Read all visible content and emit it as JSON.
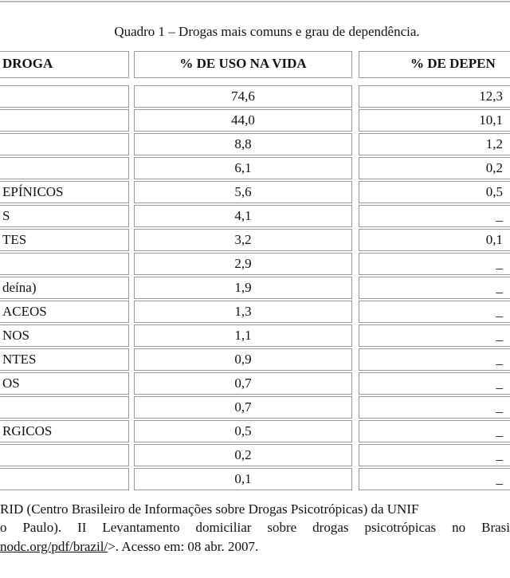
{
  "caption": "Quadro 1 – Drogas mais comuns e grau de dependência.",
  "table": {
    "header": [
      "DROGA",
      "% DE USO NA VIDA",
      "% DE DEPEN"
    ],
    "rows": [
      {
        "use": "74,6",
        "dependence": "12,3"
      },
      {
        "use": "44,0",
        "dependence": "10,1"
      },
      {
        "use": "8,8",
        "dependence": "1,2"
      },
      {
        "use": "6,1",
        "dependence": "0,2"
      },
      {
        "drug": "EPÍNICOS",
        "use": "5,6",
        "dependence": "0,5"
      },
      {
        "drug": "S",
        "use": "4,1",
        "dependence": "_"
      },
      {
        "drug": "TES",
        "use": "3,2",
        "dependence": "0,1"
      },
      {
        "use": "2,9",
        "dependence": "_"
      },
      {
        "drug": "deína)",
        "use": "1,9",
        "dependence": "_"
      },
      {
        "drug": "ACEOS",
        "use": "1,3",
        "dependence": "_"
      },
      {
        "drug": "NOS",
        "use": "1,1",
        "dependence": "_"
      },
      {
        "drug": "NTES",
        "use": "0,9",
        "dependence": "_"
      },
      {
        "drug": "OS",
        "use": "0,7",
        "dependence": "_"
      },
      {
        "use": "0,7",
        "dependence": "_"
      },
      {
        "drug": "RGICOS",
        "use": "0,5",
        "dependence": "_"
      },
      {
        "use": "0,2",
        "dependence": "_"
      },
      {
        "use": "0,1",
        "dependence": "_"
      }
    ]
  },
  "footnote": {
    "line1": "RID (Centro Brasileiro de Informações sobre Drogas Psicotrópicas) da UNIF",
    "line2": "o Paulo). II Levantamento domiciliar sobre drogas psicotrópicas no Brasi",
    "link": "nodc.org/pdf/brazil/",
    "rest": ">.  Acesso em: 08 abr. 2007."
  }
}
